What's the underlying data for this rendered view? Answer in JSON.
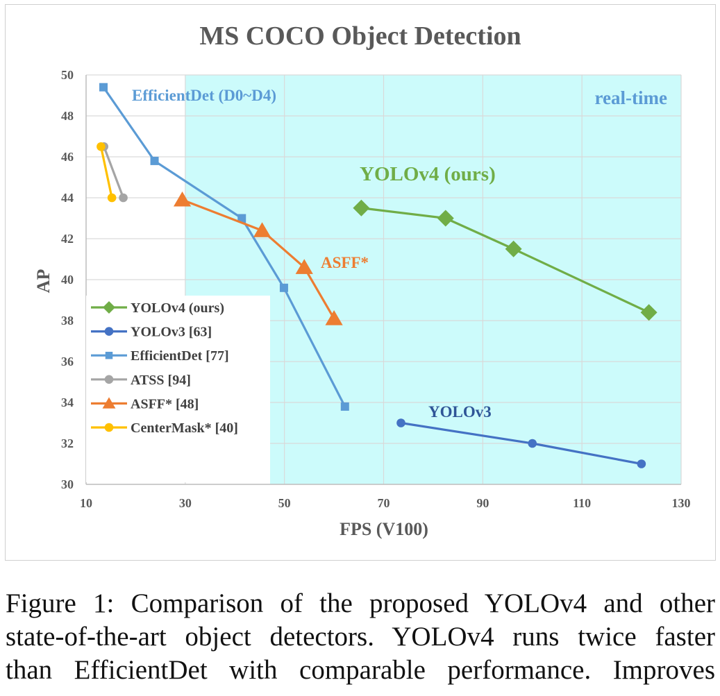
{
  "chart_data": {
    "type": "line",
    "title": "MS COCO Object Detection",
    "xlabel": "FPS (V100)",
    "ylabel": "AP",
    "xlim": [
      10,
      130
    ],
    "ylim": [
      30,
      50
    ],
    "xticks": [
      "10",
      "30",
      "50",
      "70",
      "90",
      "110",
      "130"
    ],
    "yticks": [
      "30",
      "32",
      "34",
      "36",
      "38",
      "40",
      "42",
      "44",
      "46",
      "48",
      "50"
    ],
    "grid": true,
    "legend_position": "lower-left",
    "region_label": "real-time",
    "region_color": "#ccfbfb",
    "series": [
      {
        "name": "YOLOv4 (ours)",
        "color": "#70ad47",
        "marker": "diamond",
        "x": [
          65.5,
          82.5,
          96.2,
          123.5
        ],
        "y": [
          43.5,
          43.0,
          41.5,
          38.4
        ]
      },
      {
        "name": "YOLOv3 [63]",
        "color": "#4472c4",
        "marker": "circle",
        "x": [
          73.5,
          100.0,
          122.0
        ],
        "y": [
          33.0,
          32.0,
          31.0
        ]
      },
      {
        "name": "EfficientDet [77]",
        "color": "#5b9bd5",
        "marker": "square",
        "x": [
          13.5,
          23.8,
          41.4,
          49.9,
          62.2
        ],
        "y": [
          49.4,
          45.8,
          43.0,
          39.6,
          33.8
        ]
      },
      {
        "name": "ATSS [94]",
        "color": "#a5a5a5",
        "marker": "circle",
        "x": [
          13.6,
          17.5
        ],
        "y": [
          46.5,
          44.0
        ]
      },
      {
        "name": "ASFF* [48]",
        "color": "#ed7d31",
        "marker": "triangle",
        "x": [
          29.4,
          45.5,
          54.0,
          60.0
        ],
        "y": [
          43.9,
          42.4,
          40.6,
          38.1
        ]
      },
      {
        "name": "CenterMask* [40]",
        "color": "#ffc000",
        "marker": "circle",
        "x": [
          13.0,
          15.2
        ],
        "y": [
          46.5,
          44.0
        ]
      }
    ],
    "annotations": [
      {
        "text": "EfficientDet (D0~D4)",
        "color": "#5b9bd5"
      },
      {
        "text": "YOLOv4 (ours)",
        "color": "#70ad47"
      },
      {
        "text": "ASFF*",
        "color": "#ed7d31"
      },
      {
        "text": "YOLOv3",
        "color": "#2f5597"
      }
    ]
  },
  "caption": {
    "lines": [
      "Figure 1: Comparison of the proposed YOLOv4 and other",
      "state-of-the-art object detectors. YOLOv4 runs twice faster",
      "than EfficientDet with comparable performance. Improves"
    ]
  }
}
